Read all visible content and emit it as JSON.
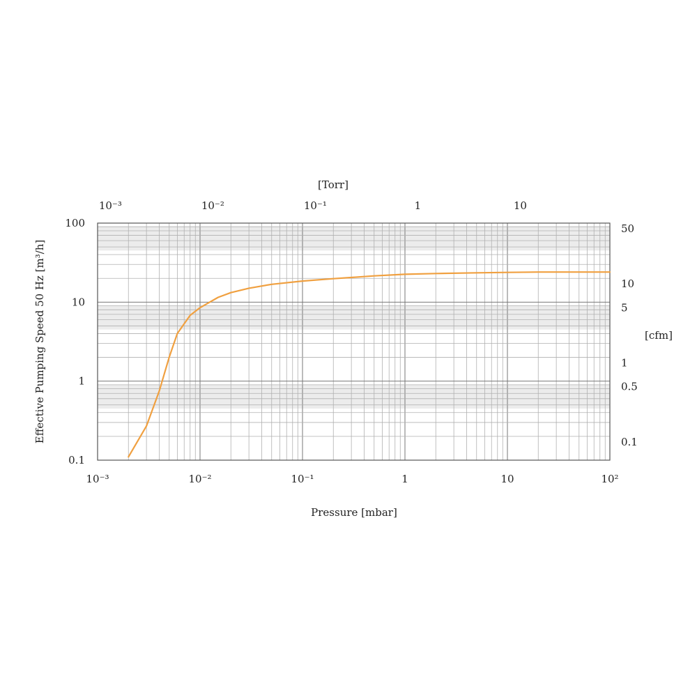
{
  "chart_data": {
    "type": "line",
    "xlabel": "Pressure [mbar]",
    "ylabel": "Effective Pumping Speed 50 Hz [m³/h]",
    "x2label": "[Torr]",
    "y2label": "[cfm]",
    "x_scale": "log",
    "y_scale": "log",
    "xlim": [
      0.001,
      100
    ],
    "ylim": [
      0.1,
      100
    ],
    "grid": true,
    "x_ticks": [
      {
        "value": 0.001,
        "label": "10⁻³"
      },
      {
        "value": 0.01,
        "label": "10⁻²"
      },
      {
        "value": 0.1,
        "label": "10⁻¹"
      },
      {
        "value": 1,
        "label": "1"
      },
      {
        "value": 10,
        "label": "10"
      },
      {
        "value": 100,
        "label": "10²"
      }
    ],
    "y_ticks": [
      {
        "value": 0.1,
        "label": "0.1"
      },
      {
        "value": 1,
        "label": "1"
      },
      {
        "value": 10,
        "label": "10"
      },
      {
        "value": 100,
        "label": "100"
      }
    ],
    "x2_ticks": [
      {
        "value": 0.001,
        "label": "10⁻³"
      },
      {
        "value": 0.01,
        "label": "10⁻²"
      },
      {
        "value": 0.1,
        "label": "10⁻¹"
      },
      {
        "value": 1,
        "label": "1"
      },
      {
        "value": 10,
        "label": "10"
      }
    ],
    "y2_ticks": [
      {
        "value": 0.17,
        "label": "0.1"
      },
      {
        "value": 0.85,
        "label": "0.5"
      },
      {
        "value": 1.7,
        "label": "1"
      },
      {
        "value": 8.5,
        "label": "5"
      },
      {
        "value": 17,
        "label": "10"
      },
      {
        "value": 85,
        "label": "50"
      }
    ],
    "series": [
      {
        "color": "#f0a040",
        "x": [
          0.002,
          0.003,
          0.004,
          0.005,
          0.006,
          0.008,
          0.01,
          0.015,
          0.02,
          0.03,
          0.05,
          0.1,
          0.2,
          0.5,
          1,
          2,
          5,
          10,
          20,
          50,
          100
        ],
        "y": [
          0.11,
          0.27,
          0.75,
          2.0,
          4.0,
          6.8,
          8.5,
          11.5,
          13.2,
          15.0,
          16.8,
          18.5,
          19.8,
          21.5,
          22.5,
          23.0,
          23.5,
          23.8,
          24.0,
          24.0,
          24.0
        ]
      }
    ]
  }
}
